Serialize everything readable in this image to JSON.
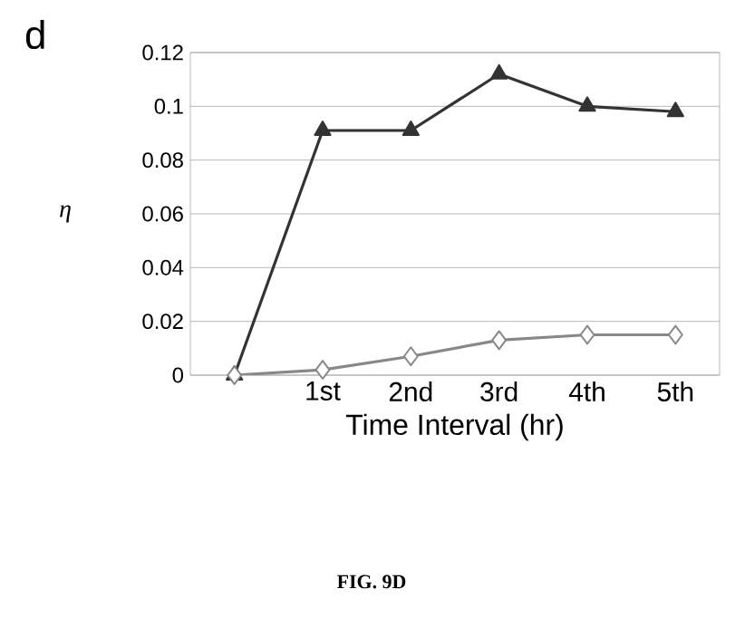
{
  "chart_data": {
    "type": "line",
    "title": "d",
    "ylabel": "η",
    "xlabel": "Time Interval (hr)",
    "categories": [
      null,
      "1st",
      "2nd",
      "3rd",
      "4th",
      "5th"
    ],
    "series": [
      {
        "color": "#333333",
        "marker": "triangle",
        "values": [
          0,
          0.091,
          0.091,
          0.112,
          0.1,
          0.098
        ]
      },
      {
        "color": "#888888",
        "marker": "diamond",
        "values": [
          0,
          0.002,
          0.007,
          0.013,
          0.015,
          0.015
        ]
      }
    ],
    "ylim": [
      0,
      0.12
    ],
    "yticks": [
      0,
      0.02,
      0.04,
      0.06,
      0.08,
      0.1,
      0.12
    ],
    "grid": "y",
    "annotations": [
      "FIG. 9D"
    ]
  }
}
